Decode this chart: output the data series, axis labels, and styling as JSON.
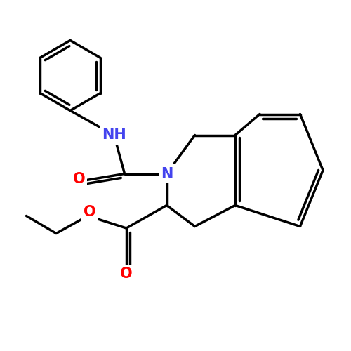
{
  "background_color": "#ffffff",
  "bond_color": "#000000",
  "bond_width": 2.5,
  "atom_colors": {
    "N": "#4444ee",
    "O": "#ff0000",
    "C": "#000000"
  },
  "font_size_atoms": 15,
  "fig_size": [
    5.0,
    5.0
  ],
  "dpi": 100,
  "xlim": [
    0,
    10
  ],
  "ylim": [
    0,
    10
  ]
}
